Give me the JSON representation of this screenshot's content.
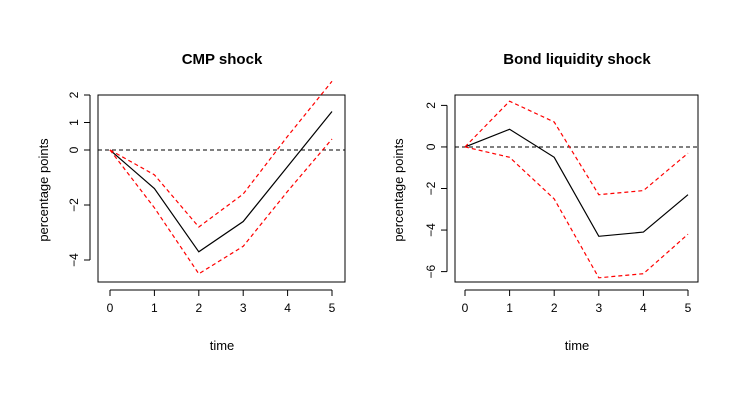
{
  "chart_data": [
    {
      "type": "line",
      "title": "CMP shock",
      "xlabel": "time",
      "ylabel": "percentage points",
      "x": [
        0,
        1,
        2,
        3,
        4,
        5
      ],
      "xlim": [
        0,
        5
      ],
      "ylim": [
        -4.8,
        2.0
      ],
      "xticks": [
        0,
        1,
        2,
        3,
        4,
        5
      ],
      "yticks": [
        -4,
        -2,
        0,
        1,
        2
      ],
      "ytick_labels": [
        "−4",
        "−2",
        "0",
        "1",
        "2"
      ],
      "reference_line": 0,
      "series": [
        {
          "role": "estimate",
          "color": "#000000",
          "dash": "solid",
          "values": [
            0,
            -1.4,
            -3.7,
            -2.6,
            -0.6,
            1.4
          ]
        },
        {
          "role": "upper band",
          "color": "#ff0000",
          "dash": "dashed",
          "values": [
            0,
            -0.9,
            -2.8,
            -1.6,
            0.5,
            2.5
          ]
        },
        {
          "role": "lower band",
          "color": "#ff0000",
          "dash": "dashed",
          "values": [
            0,
            -2.1,
            -4.5,
            -3.5,
            -1.5,
            0.4
          ]
        }
      ],
      "grid": false,
      "legend": "none"
    },
    {
      "type": "line",
      "title": "Bond liquidity shock",
      "xlabel": "time",
      "ylabel": "percentage points",
      "x": [
        0,
        1,
        2,
        3,
        4,
        5
      ],
      "xlim": [
        0,
        5
      ],
      "ylim": [
        -6.5,
        2.5
      ],
      "xticks": [
        0,
        1,
        2,
        3,
        4,
        5
      ],
      "yticks": [
        -6,
        -4,
        -2,
        0,
        2
      ],
      "ytick_labels": [
        "−6",
        "−4",
        "−2",
        "0",
        "2"
      ],
      "reference_line": 0,
      "series": [
        {
          "role": "estimate",
          "color": "#000000",
          "dash": "solid",
          "values": [
            0,
            0.85,
            -0.5,
            -4.3,
            -4.1,
            -2.3
          ]
        },
        {
          "role": "upper band",
          "color": "#ff0000",
          "dash": "dashed",
          "values": [
            0,
            2.2,
            1.2,
            -2.3,
            -2.1,
            -0.3
          ]
        },
        {
          "role": "lower band",
          "color": "#ff0000",
          "dash": "dashed",
          "values": [
            0,
            -0.5,
            -2.5,
            -6.3,
            -6.1,
            -4.2
          ]
        }
      ],
      "grid": false,
      "legend": "none"
    }
  ]
}
